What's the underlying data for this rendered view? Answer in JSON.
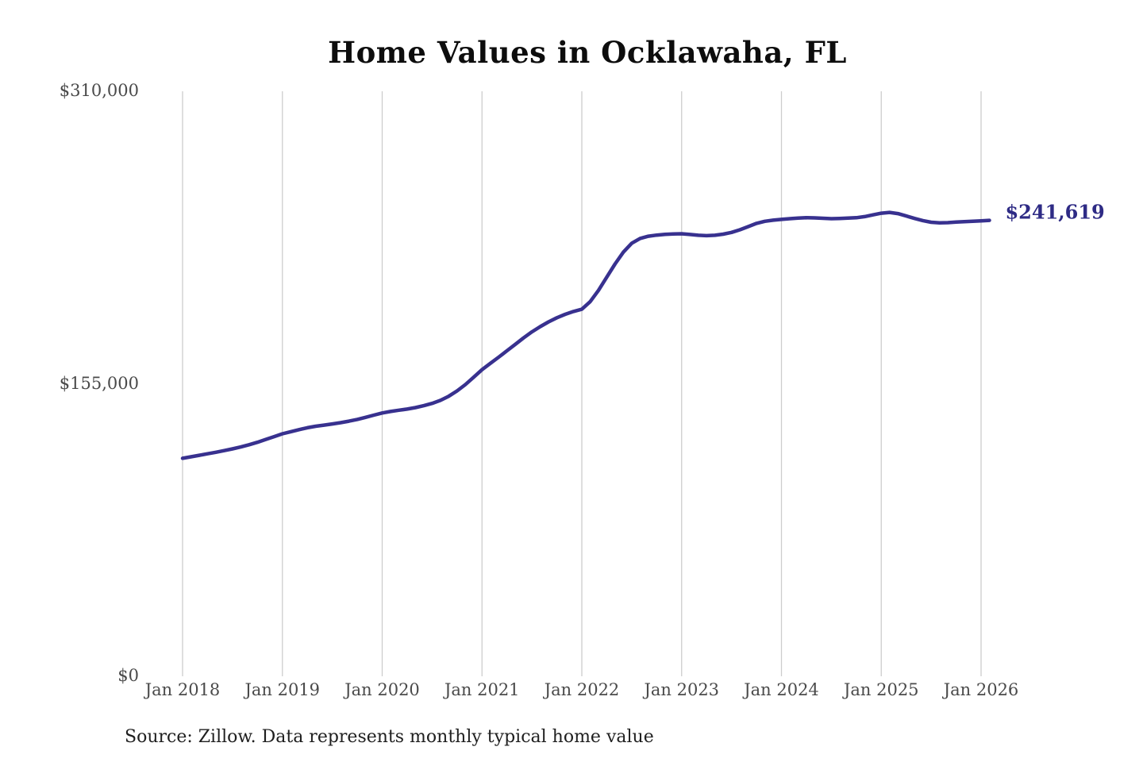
{
  "page": {
    "background": "#ffffff"
  },
  "chart_data": {
    "type": "line",
    "title": "Home Values in Ocklawaha, FL",
    "source": "Source: Zillow. Data represents monthly typical home value",
    "end_label": "$241,619",
    "latest_value": 241619,
    "line_color": "#38318f",
    "end_label_color": "#2e2b85",
    "grid_color": "#cdcdcd",
    "axis_label_color": "#4a4a4a",
    "grid": "vertical-only",
    "legend": "none",
    "xlabel": "",
    "ylabel": "",
    "ylim": [
      0,
      310000
    ],
    "x_start": "2018-01",
    "x_interval": "month",
    "x_ticks": [
      {
        "label": "Jan 2018",
        "month": 0
      },
      {
        "label": "Jan 2019",
        "month": 12
      },
      {
        "label": "Jan 2020",
        "month": 24
      },
      {
        "label": "Jan 2021",
        "month": 36
      },
      {
        "label": "Jan 2022",
        "month": 48
      },
      {
        "label": "Jan 2023",
        "month": 60
      },
      {
        "label": "Jan 2024",
        "month": 72
      },
      {
        "label": "Jan 2025",
        "month": 84
      },
      {
        "label": "Jan 2026",
        "month": 96
      }
    ],
    "y_ticks": [
      {
        "label": "$0",
        "value": 0
      },
      {
        "label": "$155,000",
        "value": 155000
      },
      {
        "label": "$310,000",
        "value": 310000
      }
    ],
    "series": [
      {
        "name": "Monthly typical home value",
        "values": [
          115500,
          116300,
          117100,
          117900,
          118700,
          119600,
          120500,
          121500,
          122700,
          124000,
          125500,
          127000,
          128500,
          129600,
          130700,
          131700,
          132500,
          133100,
          133700,
          134400,
          135200,
          136100,
          137200,
          138400,
          139500,
          140300,
          141000,
          141600,
          142400,
          143400,
          144600,
          146200,
          148400,
          151200,
          154600,
          158500,
          162500,
          165800,
          169100,
          172500,
          175900,
          179300,
          182500,
          185300,
          187800,
          190000,
          191800,
          193300,
          194500,
          198500,
          204500,
          211500,
          218500,
          224800,
          229500,
          232000,
          233200,
          233800,
          234200,
          234400,
          234500,
          234100,
          233700,
          233500,
          233700,
          234300,
          235200,
          236600,
          238300,
          240000,
          241100,
          241700,
          242100,
          242500,
          242800,
          243000,
          242900,
          242700,
          242500,
          242600,
          242800,
          243000,
          243600,
          244500,
          245400,
          245800,
          245200,
          243900,
          242600,
          241500,
          240600,
          240300,
          240400,
          240700,
          240900,
          241100,
          241300,
          241619
        ]
      }
    ]
  }
}
